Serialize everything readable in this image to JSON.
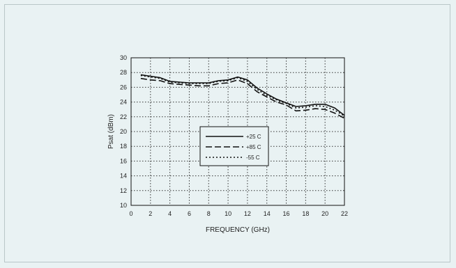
{
  "chart_data": {
    "type": "line",
    "title": "",
    "xlabel": "FREQUENCY (GHz)",
    "ylabel": "Psat (dBm)",
    "xlim": [
      0,
      22
    ],
    "ylim": [
      10,
      30
    ],
    "xticks": [
      0,
      2,
      4,
      6,
      8,
      10,
      12,
      14,
      16,
      18,
      20,
      22
    ],
    "yticks": [
      10,
      12,
      14,
      16,
      18,
      20,
      22,
      24,
      26,
      28,
      30
    ],
    "grid": true,
    "legend_position": "center",
    "series": [
      {
        "name": "+25 C",
        "style": "solid",
        "x": [
          1,
          2,
          3,
          4,
          5,
          6,
          7,
          8,
          9,
          10,
          11,
          12,
          13,
          14,
          15,
          16,
          17,
          18,
          19,
          20,
          21,
          22
        ],
        "y": [
          27.7,
          27.5,
          27.3,
          26.8,
          26.7,
          26.6,
          26.6,
          26.6,
          26.9,
          27.0,
          27.4,
          27.0,
          25.9,
          25.1,
          24.4,
          23.9,
          23.4,
          23.5,
          23.7,
          23.7,
          23.2,
          22.2
        ]
      },
      {
        "name": "+85 C",
        "style": "dashed",
        "x": [
          1,
          2,
          3,
          4,
          5,
          6,
          7,
          8,
          9,
          10,
          11,
          12,
          13,
          14,
          15,
          16,
          17,
          18,
          19,
          20,
          21,
          22
        ],
        "y": [
          27.2,
          27.0,
          26.9,
          26.5,
          26.4,
          26.3,
          26.2,
          26.2,
          26.5,
          26.6,
          27.0,
          26.5,
          25.4,
          24.7,
          24.0,
          23.6,
          22.8,
          22.9,
          23.1,
          23.0,
          22.5,
          21.8
        ]
      },
      {
        "name": "-55 C",
        "style": "dotted",
        "x": [
          1,
          2,
          3,
          4,
          5,
          6,
          7,
          8,
          9,
          10,
          11,
          12,
          13,
          14,
          15,
          16,
          17,
          18,
          19,
          20,
          21,
          22
        ],
        "y": [
          27.6,
          27.4,
          27.2,
          26.7,
          26.6,
          26.5,
          26.5,
          26.5,
          26.8,
          26.9,
          27.3,
          26.8,
          25.7,
          24.9,
          24.3,
          23.8,
          23.2,
          23.3,
          23.5,
          23.4,
          22.9,
          22.1
        ]
      }
    ]
  },
  "colors": {
    "line": "#111111",
    "grid": "#333333",
    "background": "#e9f2f3"
  }
}
